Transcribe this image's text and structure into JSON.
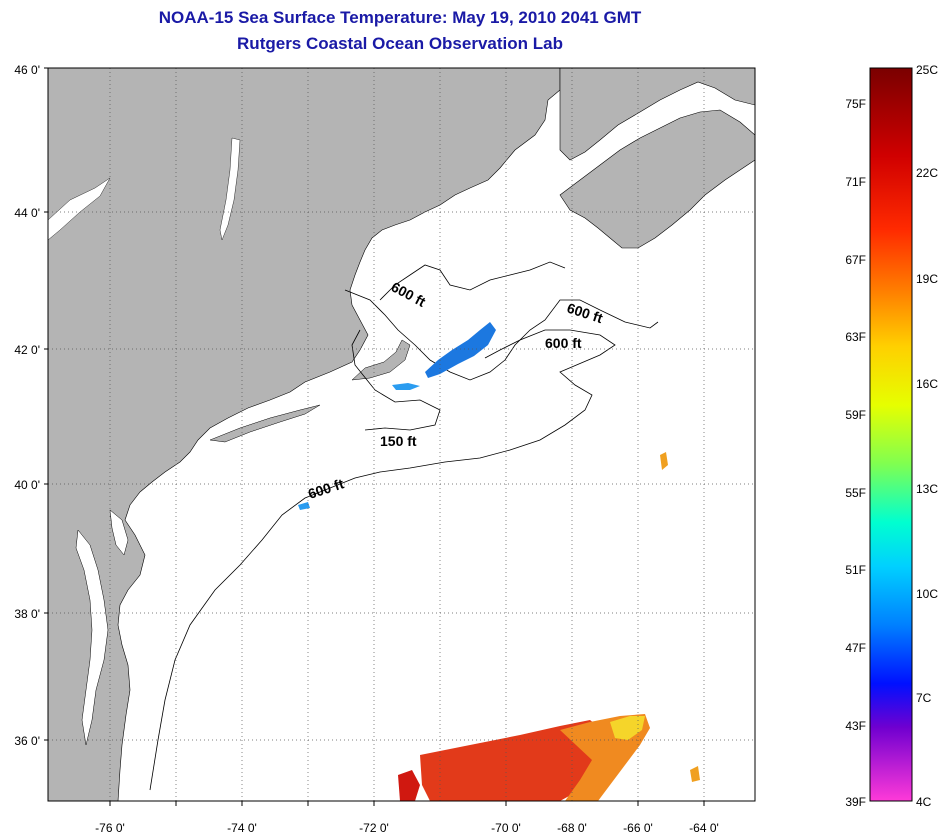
{
  "title": {
    "line1": "NOAA-15 Sea Surface Temperature:  May 19, 2010 2041 GMT",
    "line2": "Rutgers Coastal Ocean Observation Lab"
  },
  "map": {
    "lat_labels": [
      "46 0'",
      "44 0'",
      "42 0'",
      "40 0'",
      "38 0'",
      "36 0'"
    ],
    "lon_labels": [
      "-76 0'",
      "-74 0'",
      "-72 0'",
      "-70 0'",
      "-68 0'",
      "-66 0'",
      "-64 0'"
    ],
    "contour_labels": [
      "600 ft",
      "600 ft",
      "600 ft",
      "150 ft",
      "600 ft"
    ],
    "colors": {
      "land": "#b4b4b4",
      "water": "#ffffff",
      "cold_patch": "#1c78e0",
      "warm_patch": "#e8321a"
    }
  },
  "colorbar": {
    "fahrenheit_labels": [
      "75F",
      "71F",
      "67F",
      "63F",
      "59F",
      "55F",
      "51F",
      "47F",
      "43F",
      "39F"
    ],
    "celsius_labels": [
      "25C",
      "22C",
      "19C",
      "16C",
      "13C",
      "10C",
      "7C",
      "4C"
    ]
  }
}
